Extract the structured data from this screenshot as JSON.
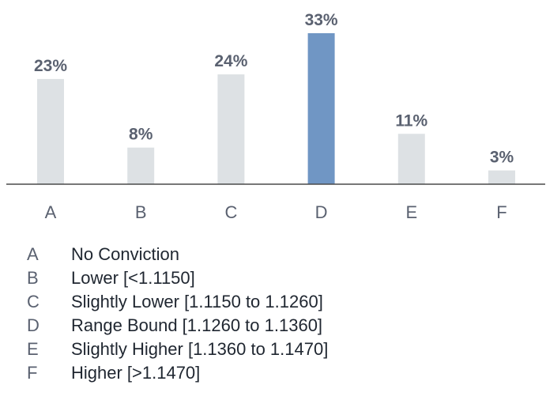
{
  "chart_data": {
    "type": "bar",
    "categories": [
      "A",
      "B",
      "C",
      "D",
      "E",
      "F"
    ],
    "values": [
      23,
      8,
      24,
      33,
      11,
      3
    ],
    "value_labels": [
      "23%",
      "8%",
      "24%",
      "33%",
      "11%",
      "3%"
    ],
    "highlight_category": "D",
    "colors": {
      "bar": "#dde1e4",
      "highlight": "#7096c4",
      "axis": "#4a4a4a",
      "value_label": "#5a6170",
      "legend_text": "#1f2630"
    },
    "ylim": [
      0,
      33
    ],
    "grid": false,
    "legend_placement": "bottom"
  },
  "legend": [
    {
      "key": "A",
      "text": "No Conviction"
    },
    {
      "key": "B",
      "text": "Lower [<1.1150]"
    },
    {
      "key": "C",
      "text": "Slightly Lower [1.1150 to 1.1260]"
    },
    {
      "key": "D",
      "text": "Range Bound [1.1260 to 1.1360]"
    },
    {
      "key": "E",
      "text": "Slightly Higher [1.1360 to 1.1470]"
    },
    {
      "key": "F",
      "text": "Higher [>1.1470]"
    }
  ]
}
